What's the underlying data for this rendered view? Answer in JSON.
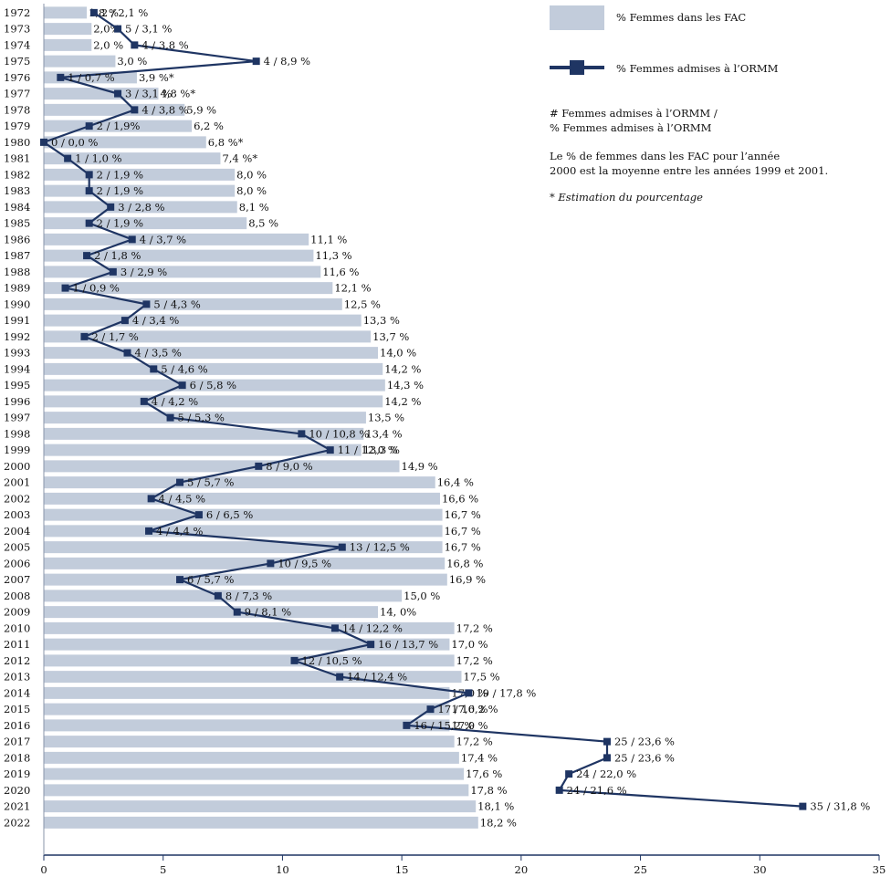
{
  "chart_data": {
    "type": "bar",
    "orientation": "horizontal",
    "categories": [
      "1972",
      "1973",
      "1974",
      "1975",
      "1976",
      "1977",
      "1978",
      "1979",
      "1980",
      "1981",
      "1982",
      "1983",
      "1984",
      "1985",
      "1986",
      "1987",
      "1988",
      "1989",
      "1990",
      "1991",
      "1992",
      "1993",
      "1994",
      "1995",
      "1996",
      "1997",
      "1998",
      "1999",
      "2000",
      "2001",
      "2002",
      "2003",
      "2004",
      "2005",
      "2006",
      "2007",
      "2008",
      "2009",
      "2010",
      "2011",
      "2012",
      "2013",
      "2014",
      "2015",
      "2016",
      "2017",
      "2018",
      "2019",
      "2020",
      "2021",
      "2022"
    ],
    "series": [
      {
        "name": "% Femmes dans les FAC",
        "type": "bar",
        "values": [
          1.8,
          2.0,
          2.0,
          3.0,
          3.9,
          4.8,
          5.9,
          6.2,
          6.8,
          7.4,
          8.0,
          8.0,
          8.1,
          8.5,
          11.1,
          11.3,
          11.6,
          12.1,
          12.5,
          13.3,
          13.7,
          14.0,
          14.2,
          14.3,
          14.2,
          13.5,
          13.4,
          13.3,
          14.9,
          16.4,
          16.6,
          16.7,
          16.7,
          16.7,
          16.8,
          16.9,
          15.0,
          14.0,
          17.2,
          17.0,
          17.2,
          17.5,
          17.0,
          17.0,
          17.0,
          17.2,
          17.4,
          17.6,
          17.8,
          18.1,
          18.2
        ],
        "labels": [
          "1,8 %",
          "2,0%",
          "2,0 %",
          "3,0 %",
          "3,9 %*",
          "4,8 %*",
          "5,9 %",
          "6,2 %",
          "6,8 %*",
          "7,4 %*",
          "8,0 %",
          "8,0 %",
          "8,1 %",
          "8,5 %",
          "11,1 %",
          "11,3 %",
          "11,6 %",
          "12,1 %",
          "12,5 %",
          "13,3 %",
          "13,7 %",
          "14,0 %",
          "14,2 %",
          "14,3 %",
          "14,2 %",
          "13,5 %",
          "13,4 %",
          "13,3 %",
          "14,9 %",
          "16,4 %",
          "16,6 %",
          "16,7 %",
          "16,7 %",
          "16,7 %",
          "16,8 %",
          "16,9 %",
          "15,0 %",
          "14, 0%",
          "17,2 %",
          "17,0 %",
          "17,2 %",
          "17,5 %",
          "17,0 %",
          "17,0 %",
          "17,0 %",
          "17,2 %",
          "17,4 %",
          "17,6 %",
          "17,8 %",
          "18,1 %",
          "18,2 %"
        ]
      },
      {
        "name": "% Femmes admises à l’ORMM",
        "type": "line",
        "values": [
          2.1,
          3.1,
          3.8,
          8.9,
          0.7,
          3.1,
          3.8,
          1.9,
          0.0,
          1.0,
          1.9,
          1.9,
          2.8,
          1.9,
          3.7,
          1.8,
          2.9,
          0.9,
          4.3,
          3.4,
          1.7,
          3.5,
          4.6,
          5.8,
          4.2,
          5.3,
          10.8,
          12.0,
          9.0,
          5.7,
          4.5,
          6.5,
          4.4,
          12.5,
          9.5,
          5.7,
          7.3,
          8.1,
          12.2,
          13.7,
          10.5,
          12.4,
          17.8,
          16.2,
          15.2,
          23.6,
          23.6,
          22.0,
          21.6,
          31.8,
          null
        ],
        "labels": [
          "2 / 2,1 %",
          "5 / 3,1 %",
          "4 / 3,8 %",
          "4 / 8,9 %",
          "1 / 0,7 %",
          "3 / 3,1 %",
          "4 / 3,8 %",
          "2 / 1,9%",
          "0 / 0,0 %",
          "1 / 1,0 %",
          "2 / 1,9 %",
          "2 / 1,9 %",
          "3 / 2,8 %",
          "2 / 1,9 %",
          "4 / 3,7 %",
          "2 / 1,8 %",
          "3 / 2,9 %",
          "1 / 0,9 %",
          "5 / 4,3 %",
          "4 / 3,4 %",
          "2 / 1,7 %",
          "4 / 3,5 %",
          "5 / 4,6 %",
          "6 / 5,8 %",
          "4 / 4,2 %",
          "5 / 5,3 %",
          "10 / 10,8 %",
          "11 / 12,0 %",
          "8 / 9,0 %",
          "5 / 5,7 %",
          "4 / 4,5 %",
          "6 / 6,5 %",
          "4 / 4,4 %",
          "13 / 12,5 %",
          "10 / 9,5 %",
          "6 / 5,7 %",
          "8 / 7,3 %",
          "9 / 8,1 %",
          "14 / 12,2 %",
          "16 / 13,7 %",
          "12 / 10,5 %",
          "14 / 12,4 %",
          "19 / 17,8 %",
          "17 / 16,2 %",
          "16 / 15,2 %",
          "25 / 23,6 %",
          "25 / 23,6 %",
          "24 / 22,0 %",
          "24 / 21,6 %",
          "35 / 31,8 %",
          ""
        ]
      }
    ],
    "xlim": [
      0,
      35
    ],
    "xticks": [
      "0",
      "5",
      "10",
      "15",
      "20",
      "25",
      "30",
      "35"
    ],
    "grid": false,
    "legend_position": "top-right",
    "colors": {
      "bar": "#c2ccdb",
      "line": "#1f3563",
      "marker": "#1f3563",
      "axis": "#1f3563"
    }
  },
  "legend": {
    "bar_label": "% Femmes dans les FAC",
    "line_label": "% Femmes admises à l’ORMM",
    "note_line1": "# Femmes admises à l’ORMM /",
    "note_line2": "% Femmes admises à l’ORMM",
    "note_line3": "Le % de femmes dans les FAC pour l’année",
    "note_line4": "2000 est la moyenne entre les années 1999 et 2001.",
    "note_line5": "* Estimation du pourcentage"
  }
}
